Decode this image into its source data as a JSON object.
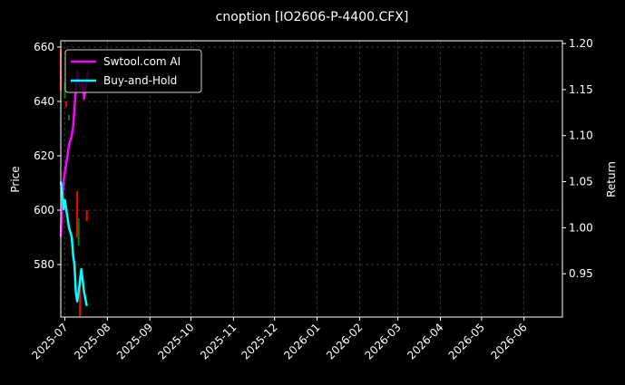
{
  "chart_data": {
    "type": "line",
    "title": "cnoption [IO2606-P-4400.CFX]",
    "ylabel": "Price",
    "y2label": "Return",
    "xlim": [
      "2025-06-28",
      "2026-06-29"
    ],
    "ylim": [
      560.7,
      662.3
    ],
    "y2lim": [
      0.903,
      1.203
    ],
    "xticks": [
      "2025-07",
      "2025-08",
      "2025-09",
      "2025-10",
      "2025-11",
      "2025-12",
      "2026-01",
      "2026-02",
      "2026-03",
      "2026-04",
      "2026-05",
      "2026-06"
    ],
    "yticks": [
      580,
      600,
      620,
      640,
      660
    ],
    "y2ticks": [
      "0.95",
      "1.00",
      "1.05",
      "1.10",
      "1.15",
      "1.20"
    ],
    "grid": true,
    "legend_placement": "top-left",
    "background": "#000000",
    "candles": [
      {
        "date": "2025-06-28",
        "open": 659,
        "close": 644,
        "color": "#ff0000"
      },
      {
        "date": "2025-07-01",
        "open": 641,
        "close": 647,
        "color": "#008000"
      },
      {
        "date": "2025-07-02",
        "open": 640,
        "close": 638,
        "color": "#ff0000"
      },
      {
        "date": "2025-07-04",
        "open": 633,
        "close": 635,
        "color": "#008000"
      },
      {
        "date": "2025-07-10",
        "open": 607,
        "close": 590,
        "color": "#ff0000"
      },
      {
        "date": "2025-07-11",
        "open": 587,
        "close": 597,
        "color": "#008000"
      },
      {
        "date": "2025-07-12",
        "open": 576,
        "close": 561,
        "color": "#ff0000"
      },
      {
        "date": "2025-07-17",
        "open": 600,
        "close": 596,
        "color": "#ff0000"
      }
    ],
    "series": [
      {
        "name": "Swtool.com AI",
        "color": "#ff00ff",
        "axis": "right",
        "x": [
          "2025-06-28",
          "2025-06-29",
          "2025-06-30",
          "2025-07-01",
          "2025-07-02",
          "2025-07-03",
          "2025-07-04",
          "2025-07-06",
          "2025-07-07",
          "2025-07-08",
          "2025-07-09",
          "2025-07-10",
          "2025-07-11",
          "2025-07-13",
          "2025-07-14",
          "2025-07-15",
          "2025-07-17",
          "2025-07-18"
        ],
        "values": [
          0.99,
          1.03,
          1.05,
          1.06,
          1.07,
          1.08,
          1.09,
          1.1,
          1.11,
          1.13,
          1.15,
          1.17,
          1.16,
          1.15,
          1.16,
          1.14,
          1.16,
          1.17
        ]
      },
      {
        "name": "Buy-and-Hold",
        "color": "#00ffff",
        "axis": "right",
        "x": [
          "2025-06-28",
          "2025-06-29",
          "2025-06-30",
          "2025-07-01",
          "2025-07-02",
          "2025-07-03",
          "2025-07-04",
          "2025-07-06",
          "2025-07-07",
          "2025-07-08",
          "2025-07-09",
          "2025-07-10",
          "2025-07-11",
          "2025-07-13",
          "2025-07-15",
          "2025-07-17"
        ],
        "values": [
          1.05,
          1.04,
          1.02,
          1.03,
          1.02,
          1.01,
          1.0,
          0.99,
          0.97,
          0.96,
          0.93,
          0.92,
          0.93,
          0.955,
          0.93,
          0.915
        ]
      }
    ]
  }
}
